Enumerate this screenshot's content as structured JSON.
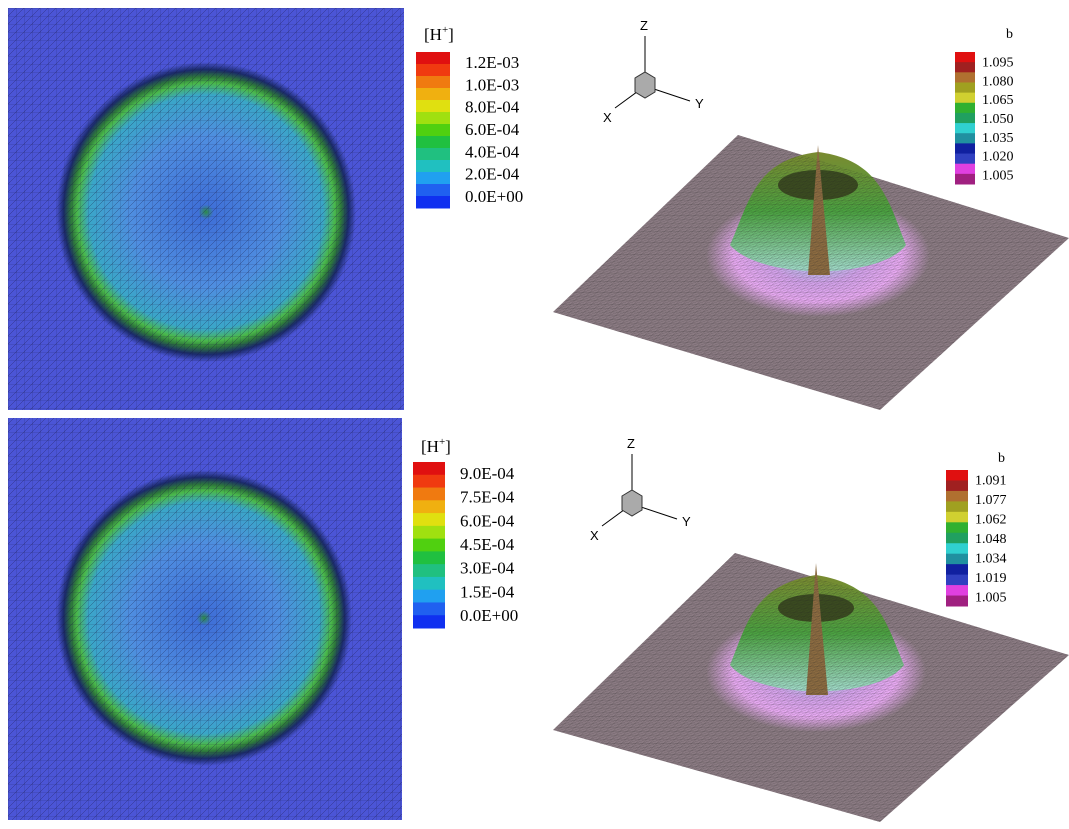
{
  "panels": [
    {
      "legend": {
        "title": "[H",
        "title_sup": "+",
        "title_end": "]",
        "labels": [
          "1.2E-03",
          "1.0E-03",
          "8.0E-04",
          "6.0E-04",
          "4.0E-04",
          "2.0E-04",
          "0.0E+00"
        ]
      }
    },
    {
      "axes": {
        "z": "Z",
        "x": "X",
        "y": "Y"
      },
      "legend": {
        "title": "b",
        "labels": [
          "1.095",
          "1.080",
          "1.065",
          "1.050",
          "1.035",
          "1.020",
          "1.005"
        ]
      }
    },
    {
      "legend": {
        "title": "[H",
        "title_sup": "+",
        "title_end": "]",
        "labels": [
          "9.0E-04",
          "7.5E-04",
          "6.0E-04",
          "4.5E-04",
          "3.0E-04",
          "1.5E-04",
          "0.0E+00"
        ]
      }
    },
    {
      "axes": {
        "z": "Z",
        "x": "X",
        "y": "Y"
      },
      "legend": {
        "title": "b",
        "labels": [
          "1.091",
          "1.077",
          "1.062",
          "1.048",
          "1.034",
          "1.019",
          "1.005"
        ]
      }
    }
  ]
}
